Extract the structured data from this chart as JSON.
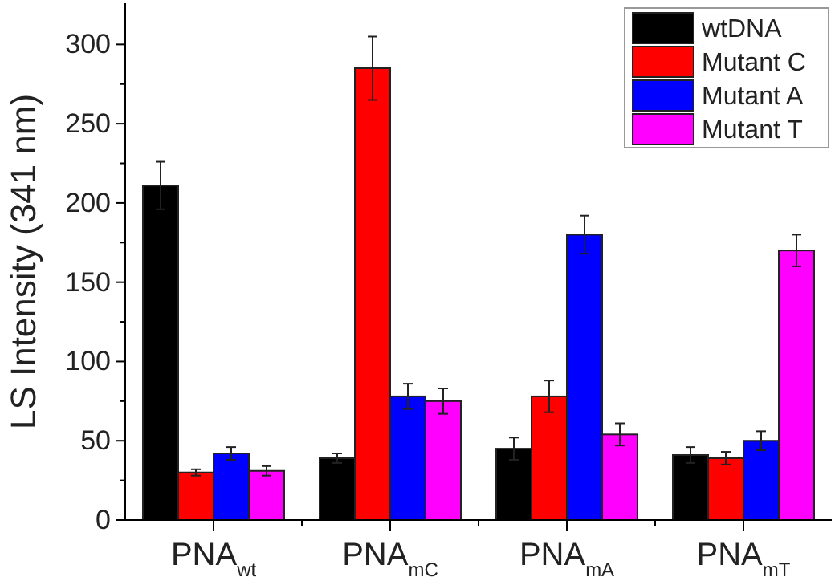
{
  "chart_data": {
    "type": "bar",
    "ylabel": "LS Intensity (341 nm)",
    "categories": [
      "PNA$_{wt}$",
      "PNA$_{mC}$",
      "PNA$_{mA}$",
      "PNA$_{mT}$"
    ],
    "series": [
      {
        "name": "wtDNA",
        "color": "#000000",
        "values": [
          211,
          39,
          45,
          41
        ],
        "errors": [
          15,
          3,
          7,
          5
        ]
      },
      {
        "name": "Mutant C",
        "color": "#ff0000",
        "values": [
          30,
          285,
          78,
          39
        ],
        "errors": [
          2,
          20,
          10,
          4
        ]
      },
      {
        "name": "Mutant A",
        "color": "#0000ff",
        "values": [
          42,
          78,
          180,
          50
        ],
        "errors": [
          4,
          8,
          12,
          6
        ]
      },
      {
        "name": "Mutant T",
        "color": "#ff00ff",
        "values": [
          31,
          75,
          54,
          170
        ],
        "errors": [
          3,
          8,
          7,
          10
        ]
      }
    ],
    "ylim": [
      0,
      326
    ],
    "yticks": [
      0,
      {
        "value": 25,
        "label": null
      },
      50,
      {
        "value": 75,
        "label": null
      },
      100,
      {
        "value": 125,
        "label": null
      },
      150,
      {
        "value": 175,
        "label": null
      },
      200,
      {
        "value": 225,
        "label": null
      },
      250,
      {
        "value": 275,
        "label": null
      },
      300
    ],
    "legend": "top right",
    "grid": false
  }
}
